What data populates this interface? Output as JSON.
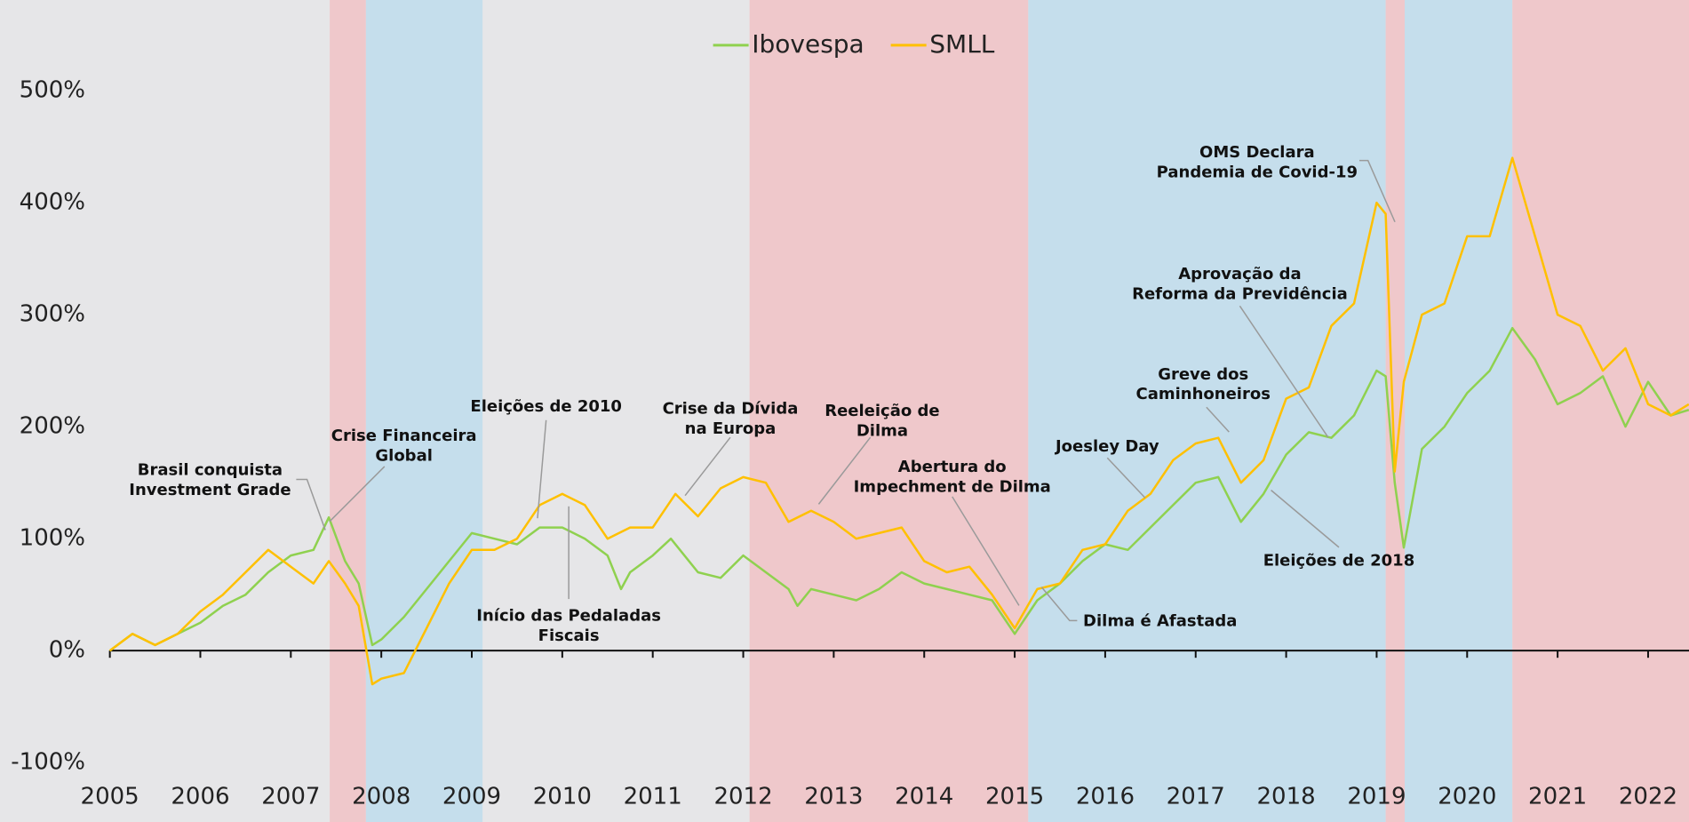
{
  "chart_data": {
    "type": "line",
    "xlim": [
      2003.786,
      2022.452
    ],
    "ylim": [
      -153,
      581
    ],
    "xticks": [
      2005,
      2006,
      2007,
      2008,
      2009,
      2010,
      2011,
      2012,
      2013,
      2014,
      2015,
      2016,
      2017,
      2018,
      2019,
      2020,
      2021,
      2022
    ],
    "yticks": [
      {
        "value": -100,
        "label": "-100%"
      },
      {
        "value": 0,
        "label": "0%"
      },
      {
        "value": 100,
        "label": "100%"
      },
      {
        "value": 200,
        "label": "200%"
      },
      {
        "value": 300,
        "label": "300%"
      },
      {
        "value": 400,
        "label": "400%"
      },
      {
        "value": 500,
        "label": "500%"
      }
    ],
    "bands": [
      {
        "start": 2003.786,
        "end": 2007.43,
        "color": "#e6e6e8"
      },
      {
        "start": 2007.43,
        "end": 2007.83,
        "color": "#efc8cb"
      },
      {
        "start": 2007.83,
        "end": 2009.12,
        "color": "#c5deec"
      },
      {
        "start": 2009.12,
        "end": 2012.07,
        "color": "#e6e6e8"
      },
      {
        "start": 2012.07,
        "end": 2015.15,
        "color": "#efc8cb"
      },
      {
        "start": 2015.15,
        "end": 2019.1,
        "color": "#c5deec"
      },
      {
        "start": 2019.1,
        "end": 2019.31,
        "color": "#efc8cb"
      },
      {
        "start": 2019.31,
        "end": 2020.5,
        "color": "#c5deec"
      },
      {
        "start": 2020.5,
        "end": 2022.452,
        "color": "#efc8cb"
      }
    ],
    "legend": "top",
    "series": [
      {
        "name": "Ibovespa",
        "color": "#8fd14f",
        "x": [
          2005,
          2005.25,
          2005.5,
          2005.75,
          2006,
          2006.25,
          2006.5,
          2006.75,
          2007,
          2007.25,
          2007.42,
          2007.6,
          2007.75,
          2007.9,
          2008,
          2008.25,
          2008.5,
          2008.75,
          2009,
          2009.25,
          2009.5,
          2009.75,
          2010,
          2010.25,
          2010.5,
          2010.65,
          2010.75,
          2011,
          2011.2,
          2011.5,
          2011.75,
          2012,
          2012.25,
          2012.5,
          2012.6,
          2012.75,
          2013,
          2013.25,
          2013.5,
          2013.75,
          2014,
          2014.25,
          2014.5,
          2014.75,
          2015,
          2015.25,
          2015.5,
          2015.75,
          2016,
          2016.25,
          2016.5,
          2016.75,
          2017,
          2017.25,
          2017.5,
          2017.75,
          2018,
          2018.25,
          2018.5,
          2018.75,
          2019,
          2019.1,
          2019.2,
          2019.3,
          2019.5,
          2019.75,
          2020,
          2020.25,
          2020.5,
          2020.75,
          2021,
          2021.25,
          2021.5,
          2021.75,
          2022,
          2022.25,
          2022.45
        ],
        "values": [
          0,
          15,
          5,
          15,
          25,
          40,
          50,
          70,
          85,
          90,
          119,
          80,
          60,
          5,
          10,
          30,
          55,
          80,
          105,
          100,
          95,
          110,
          110,
          100,
          85,
          55,
          70,
          85,
          100,
          70,
          65,
          85,
          70,
          55,
          40,
          55,
          50,
          45,
          55,
          70,
          60,
          55,
          50,
          45,
          15,
          45,
          60,
          80,
          95,
          90,
          110,
          130,
          150,
          155,
          115,
          140,
          175,
          195,
          190,
          210,
          250,
          245,
          150,
          92,
          180,
          200,
          230,
          250,
          288,
          260,
          220,
          230,
          245,
          200,
          240,
          210,
          215
        ]
      },
      {
        "name": "SMLL",
        "color": "#ffc000",
        "x": [
          2005,
          2005.25,
          2005.5,
          2005.75,
          2006,
          2006.25,
          2006.5,
          2006.75,
          2007,
          2007.25,
          2007.42,
          2007.6,
          2007.75,
          2007.9,
          2008,
          2008.25,
          2008.5,
          2008.75,
          2009,
          2009.25,
          2009.5,
          2009.75,
          2010,
          2010.25,
          2010.5,
          2010.75,
          2011,
          2011.25,
          2011.5,
          2011.75,
          2012,
          2012.25,
          2012.5,
          2012.75,
          2013,
          2013.25,
          2013.5,
          2013.75,
          2014,
          2014.25,
          2014.5,
          2014.75,
          2015,
          2015.25,
          2015.5,
          2015.75,
          2016,
          2016.25,
          2016.5,
          2016.75,
          2017,
          2017.25,
          2017.5,
          2017.75,
          2018,
          2018.25,
          2018.5,
          2018.75,
          2019,
          2019.1,
          2019.2,
          2019.3,
          2019.5,
          2019.75,
          2020,
          2020.25,
          2020.5,
          2020.75,
          2021,
          2021.25,
          2021.5,
          2021.75,
          2022,
          2022.25,
          2022.45
        ],
        "values": [
          0,
          15,
          5,
          15,
          35,
          50,
          70,
          90,
          75,
          60,
          80,
          60,
          40,
          -30,
          -25,
          -20,
          20,
          60,
          90,
          90,
          100,
          130,
          140,
          130,
          100,
          110,
          110,
          140,
          120,
          145,
          155,
          150,
          115,
          125,
          115,
          100,
          105,
          110,
          80,
          70,
          75,
          50,
          20,
          55,
          60,
          90,
          95,
          125,
          140,
          170,
          185,
          190,
          150,
          170,
          225,
          235,
          290,
          310,
          400,
          390,
          160,
          240,
          300,
          310,
          370,
          370,
          440,
          370,
          300,
          290,
          250,
          270,
          220,
          210,
          220
        ]
      }
    ],
    "annotations": [
      {
        "lines": [
          "Brasil conquista",
          "Investment Grade"
        ]
      },
      {
        "lines": [
          "Crise Financeira",
          "Global"
        ]
      },
      {
        "lines": [
          "Eleições de 2010"
        ]
      },
      {
        "lines": [
          "Início das Pedaladas",
          "Fiscais"
        ]
      },
      {
        "lines": [
          "Crise da Dívida",
          "na Europa"
        ]
      },
      {
        "lines": [
          "Reeleição de",
          "Dilma"
        ]
      },
      {
        "lines": [
          "Abertura do",
          "Impechment de Dilma"
        ]
      },
      {
        "lines": [
          "Joesley Day"
        ]
      },
      {
        "lines": [
          "Dilma é Afastada"
        ]
      },
      {
        "lines": [
          "Greve dos",
          "Caminhoneiros"
        ]
      },
      {
        "lines": [
          "Eleições de 2018"
        ]
      },
      {
        "lines": [
          "Aprovação da",
          "Reforma da Previdência"
        ]
      },
      {
        "lines": [
          "OMS Declara",
          "Pandemia de Covid-19"
        ]
      }
    ]
  }
}
